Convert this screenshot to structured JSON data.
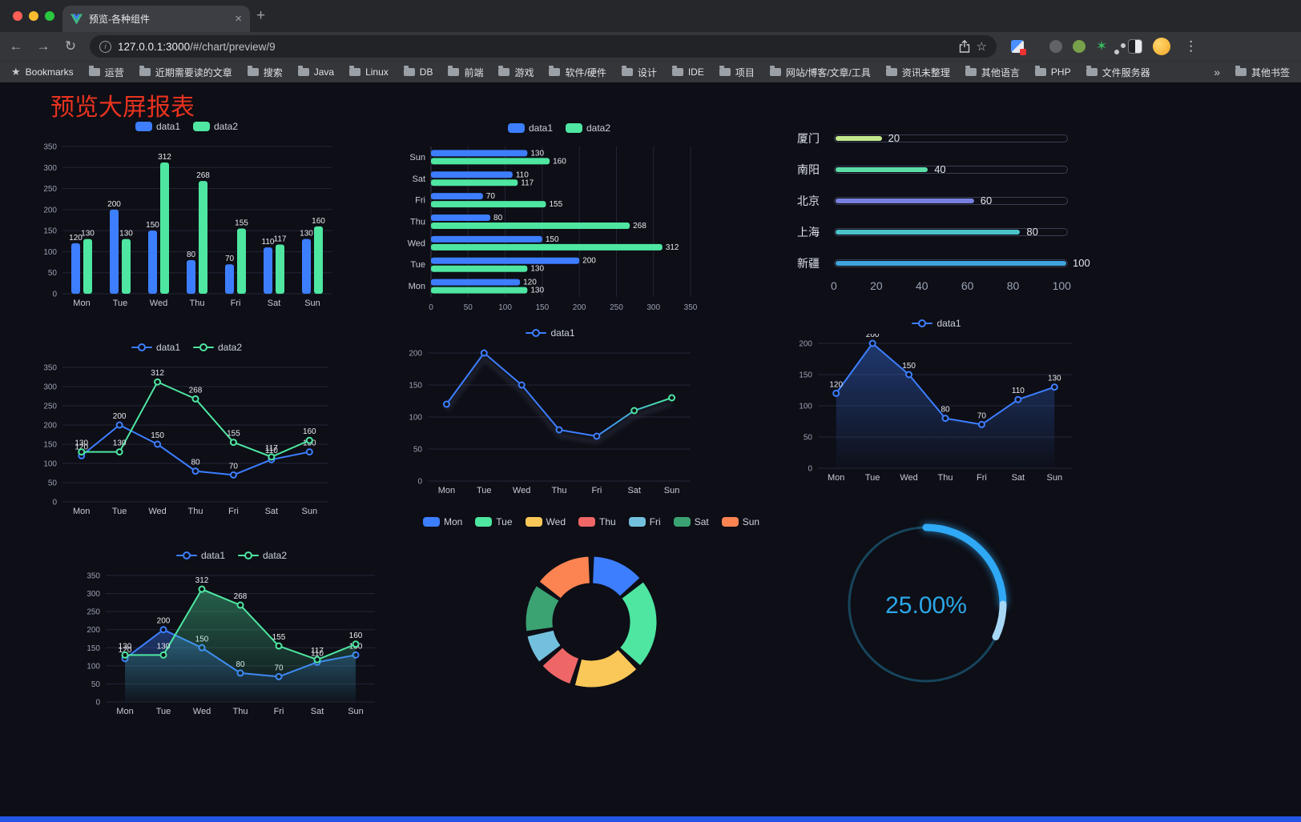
{
  "browser": {
    "tab": {
      "title": "预览-各种组件",
      "close_glyph": "×",
      "new_tab_glyph": "+"
    },
    "nav": {
      "back_glyph": "←",
      "forward_glyph": "→",
      "reload_glyph": "↻",
      "star_glyph": "☆",
      "menu_glyph": "⋮",
      "info_glyph": "i"
    },
    "address": {
      "host": "127.0.0.1:3000",
      "path": "/#/chart/preview/9"
    },
    "bookmarks_bar": {
      "star_glyph": "★",
      "first_label": "Bookmarks",
      "folders": [
        "运营",
        "近期需要读的文章",
        "搜索",
        "Java",
        "Linux",
        "DB",
        "前端",
        "游戏",
        "软件/硬件",
        "设计",
        "IDE",
        "项目",
        "网站/博客/文章/工具",
        "资讯未整理",
        "其他语言",
        "PHP",
        "文件服务器"
      ],
      "overflow_glyph": "»",
      "other_label": "其他书签"
    },
    "traffic_lights": [
      "#ff5f57",
      "#febc2e",
      "#28c840"
    ]
  },
  "page": {
    "title": "预览大屏报表",
    "title_color": "#e8331f",
    "footer_color": "#2257e6",
    "background": "#0d0e16"
  },
  "chart_data": [
    {
      "type": "bar",
      "categories": [
        "Mon",
        "Tue",
        "Wed",
        "Thu",
        "Fri",
        "Sat",
        "Sun"
      ],
      "ylim": [
        0,
        350
      ],
      "ystep": 50,
      "series": [
        {
          "name": "data1",
          "color": "#3D7EFF",
          "values": [
            120,
            200,
            150,
            80,
            70,
            110,
            130
          ]
        },
        {
          "name": "data2",
          "color": "#4EE6A1",
          "values": [
            130,
            130,
            312,
            268,
            155,
            117,
            160
          ]
        }
      ]
    },
    {
      "type": "hbar",
      "categories": [
        "Sun",
        "Sat",
        "Fri",
        "Thu",
        "Wed",
        "Tue",
        "Mon"
      ],
      "xlim": [
        0,
        350
      ],
      "xstep": 50,
      "series": [
        {
          "name": "data1",
          "color": "#3D7EFF",
          "values": [
            130,
            110,
            70,
            80,
            150,
            200,
            120
          ]
        },
        {
          "name": "data2",
          "color": "#4EE6A1",
          "values": [
            160,
            117,
            155,
            268,
            312,
            130,
            130
          ]
        }
      ]
    },
    {
      "type": "progress",
      "max": 100,
      "axis": [
        0,
        20,
        40,
        60,
        80,
        100
      ],
      "items": [
        {
          "label": "厦门",
          "value": 20,
          "color": "#C3E88C"
        },
        {
          "label": "南阳",
          "value": 40,
          "color": "#5CDDA8"
        },
        {
          "label": "北京",
          "value": 60,
          "color": "#7880DF"
        },
        {
          "label": "上海",
          "value": 80,
          "color": "#4AC3CB"
        },
        {
          "label": "新疆",
          "value": 100,
          "color": "#3FA3DD"
        }
      ]
    },
    {
      "type": "line",
      "categories": [
        "Mon",
        "Tue",
        "Wed",
        "Thu",
        "Fri",
        "Sat",
        "Sun"
      ],
      "ylim": [
        0,
        350
      ],
      "ystep": 50,
      "labels": true,
      "series": [
        {
          "name": "data1",
          "color": "#3D7EFF",
          "values": [
            120,
            200,
            150,
            80,
            70,
            110,
            130
          ]
        },
        {
          "name": "data2",
          "color": "#4EE6A1",
          "values": [
            130,
            130,
            312,
            268,
            155,
            117,
            160
          ]
        }
      ]
    },
    {
      "type": "line",
      "categories": [
        "Mon",
        "Tue",
        "Wed",
        "Thu",
        "Fri",
        "Sat",
        "Sun"
      ],
      "ylim": [
        0,
        200
      ],
      "ystep": 50,
      "labels": false,
      "shadow": true,
      "series": [
        {
          "name": "data1",
          "color": "#3D7EFF",
          "color2": "#4EE6A1",
          "values": [
            120,
            200,
            150,
            80,
            70,
            110,
            130
          ]
        }
      ]
    },
    {
      "type": "line",
      "categories": [
        "Mon",
        "Tue",
        "Wed",
        "Thu",
        "Fri",
        "Sat",
        "Sun"
      ],
      "ylim": [
        0,
        200
      ],
      "ystep": 50,
      "labels": true,
      "series": [
        {
          "name": "data1",
          "color": "#3D7EFF",
          "area": true,
          "values": [
            120,
            200,
            150,
            80,
            70,
            110,
            130
          ]
        }
      ]
    },
    {
      "type": "line",
      "categories": [
        "Mon",
        "Tue",
        "Wed",
        "Thu",
        "Fri",
        "Sat",
        "Sun"
      ],
      "ylim": [
        0,
        350
      ],
      "ystep": 50,
      "labels": true,
      "series": [
        {
          "name": "data1",
          "color": "#3D7EFF",
          "area": true,
          "values": [
            120,
            200,
            150,
            80,
            70,
            110,
            130
          ]
        },
        {
          "name": "data2",
          "color": "#4EE6A1",
          "area": true,
          "values": [
            130,
            130,
            312,
            268,
            155,
            117,
            160
          ]
        }
      ]
    },
    {
      "type": "donut",
      "categories": [
        "Mon",
        "Tue",
        "Wed",
        "Thu",
        "Fri",
        "Sat",
        "Sun"
      ],
      "values": [
        120,
        200,
        150,
        80,
        70,
        110,
        130
      ],
      "colors": [
        "#3D7EFF",
        "#4EE6A1",
        "#FAC858",
        "#EE6666",
        "#73C0DE",
        "#3BA272",
        "#FC8452"
      ]
    },
    {
      "type": "gauge",
      "value": 25,
      "label": "25.00%",
      "color": "#2FA9F5",
      "tip_color": "#A6D8F5",
      "ring_color": "#17455C",
      "text_color": "#2BA7E8"
    }
  ]
}
